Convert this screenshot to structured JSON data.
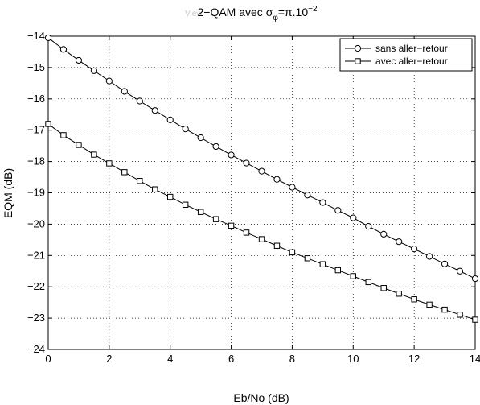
{
  "chart_data": {
    "type": "line",
    "title": {
      "prefix": "2−QAM avec σ",
      "subscript": "φ",
      "middle": "=π.10",
      "superscript": "−2"
    },
    "watermark": "View",
    "xlabel": "Eb/No (dB)",
    "ylabel": "EQM (dB)",
    "xlim": [
      0,
      14
    ],
    "ylim": [
      -24,
      -14
    ],
    "xticks": [
      0,
      2,
      4,
      6,
      8,
      10,
      12,
      14
    ],
    "yticks": [
      -24,
      -23,
      -22,
      -21,
      -20,
      -19,
      -18,
      -17,
      -16,
      -15,
      -14
    ],
    "grid": true,
    "legend_position": "top-right",
    "x": [
      0,
      0.5,
      1,
      1.5,
      2,
      2.5,
      3,
      3.5,
      4,
      4.5,
      5,
      5.5,
      6,
      6.5,
      7,
      7.5,
      8,
      8.5,
      9,
      9.5,
      10,
      10.5,
      11,
      11.5,
      12,
      12.5,
      13,
      13.5,
      14
    ],
    "series": [
      {
        "name": "sans aller−retour",
        "marker": "circle",
        "color": "#000000",
        "values": [
          -14.05,
          -14.42,
          -14.77,
          -15.1,
          -15.43,
          -15.76,
          -16.07,
          -16.37,
          -16.67,
          -16.96,
          -17.24,
          -17.52,
          -17.79,
          -18.05,
          -18.31,
          -18.57,
          -18.82,
          -19.07,
          -19.31,
          -19.56,
          -19.8,
          -20.07,
          -20.32,
          -20.56,
          -20.79,
          -21.03,
          -21.27,
          -21.5,
          -21.74
        ]
      },
      {
        "name": "avec aller−retour",
        "marker": "square",
        "color": "#000000",
        "values": [
          -16.8,
          -17.16,
          -17.47,
          -17.78,
          -18.06,
          -18.34,
          -18.62,
          -18.89,
          -19.13,
          -19.38,
          -19.61,
          -19.84,
          -20.05,
          -20.27,
          -20.48,
          -20.69,
          -20.9,
          -21.09,
          -21.28,
          -21.47,
          -21.66,
          -21.85,
          -22.04,
          -22.22,
          -22.4,
          -22.57,
          -22.73,
          -22.89,
          -23.05
        ]
      }
    ]
  }
}
